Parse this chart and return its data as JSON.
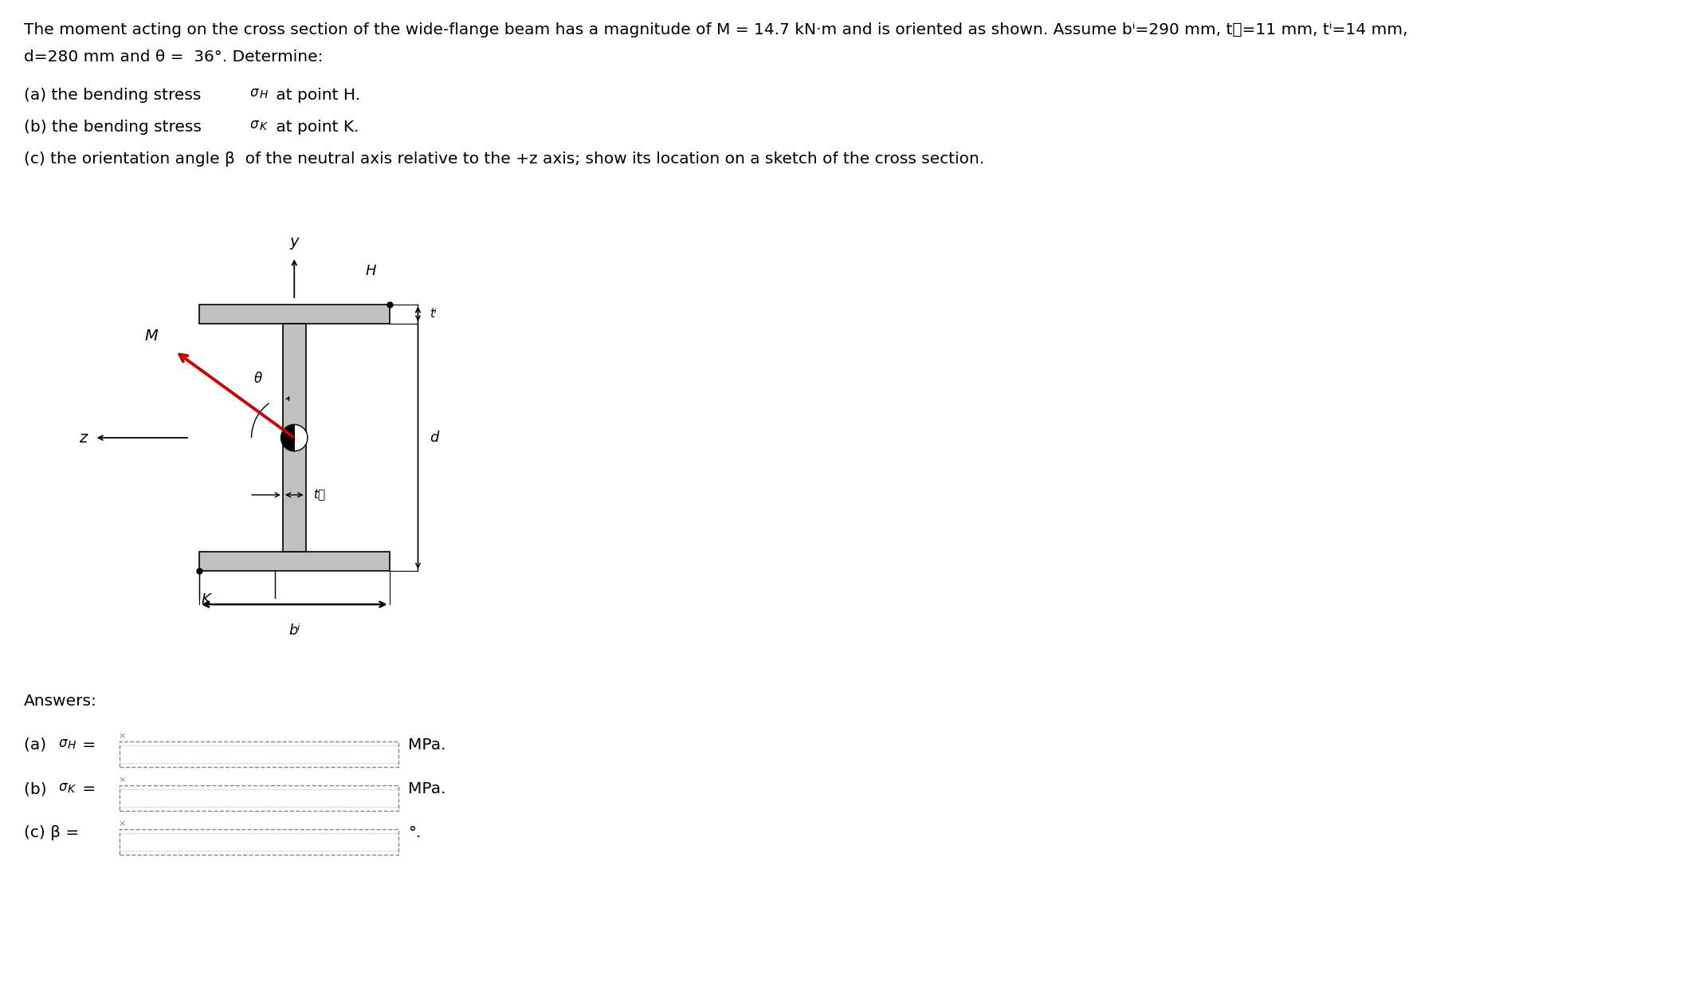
{
  "bg_color": "#ffffff",
  "text_color": "#000000",
  "beam_fill_color": "#c0c0c0",
  "beam_edge_color": "#000000",
  "arrow_color": "#cc0000",
  "line1": "The moment acting on the cross section of the wide-flange beam has a magnitude of M = 14.7 kN·m and is oriented as shown. Assume bⁱ=290 mm, tᵰ=11 mm, tⁱ=14 mm,",
  "line2": "d=280 mm and θ =  36°. Determine:",
  "line_a": "(a) the bending stress ",
  "sigma_H": "σH",
  "at_H": " at point H.",
  "line_b": "(b) the bending stress ",
  "sigma_K": "σK",
  "at_K": " at point K.",
  "line_c": "(c) the orientation angle β  of the neutral axis relative to the +z axis; show its location on a sketch of the cross section.",
  "answers": "Answers:",
  "ans_a": "(a) σH =",
  "ans_b": "(b) σK =",
  "ans_c": "(c) β =",
  "mpa": "MPa.",
  "deg": "°."
}
